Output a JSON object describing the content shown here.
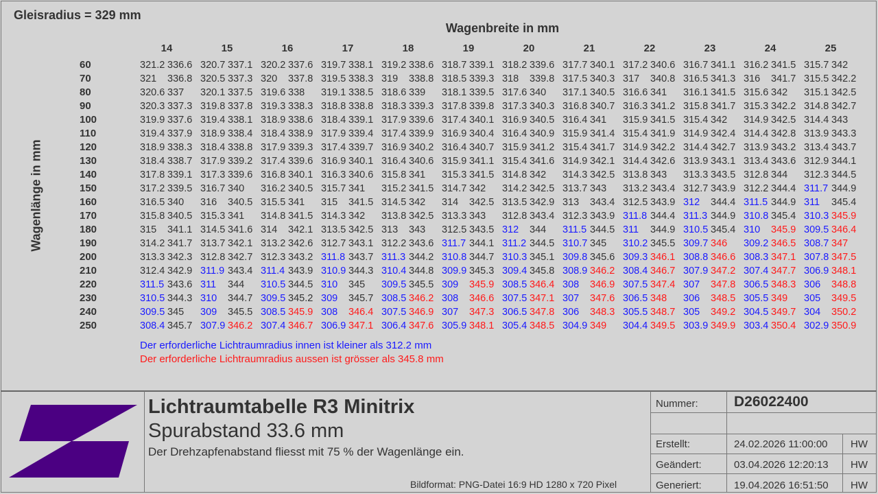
{
  "header": {
    "gleisradius": "Gleisradius = 329 mm",
    "wagenbreite_title": "Wagenbreite in mm",
    "wagenlaenge_title": "Wagenlänge in mm"
  },
  "table": {
    "widths": [
      "14",
      "15",
      "16",
      "17",
      "18",
      "19",
      "20",
      "21",
      "22",
      "23",
      "24",
      "25"
    ],
    "lengths": [
      "60",
      "70",
      "80",
      "90",
      "100",
      "110",
      "120",
      "130",
      "140",
      "150",
      "160",
      "170",
      "180",
      "190",
      "200",
      "210",
      "220",
      "230",
      "240",
      "250"
    ],
    "rows": [
      [
        [
          "321.2",
          "336.6"
        ],
        [
          "320.7",
          "337.1"
        ],
        [
          "320.2",
          "337.6"
        ],
        [
          "319.7",
          "338.1"
        ],
        [
          "319.2",
          "338.6"
        ],
        [
          "318.7",
          "339.1"
        ],
        [
          "318.2",
          "339.6"
        ],
        [
          "317.7",
          "340.1"
        ],
        [
          "317.2",
          "340.6"
        ],
        [
          "316.7",
          "341.1"
        ],
        [
          "316.2",
          "341.5"
        ],
        [
          "315.7",
          "342"
        ]
      ],
      [
        [
          "321",
          "336.8"
        ],
        [
          "320.5",
          "337.3"
        ],
        [
          "320",
          "337.8"
        ],
        [
          "319.5",
          "338.3"
        ],
        [
          "319",
          "338.8"
        ],
        [
          "318.5",
          "339.3"
        ],
        [
          "318",
          "339.8"
        ],
        [
          "317.5",
          "340.3"
        ],
        [
          "317",
          "340.8"
        ],
        [
          "316.5",
          "341.3"
        ],
        [
          "316",
          "341.7"
        ],
        [
          "315.5",
          "342.2"
        ]
      ],
      [
        [
          "320.6",
          "337"
        ],
        [
          "320.1",
          "337.5"
        ],
        [
          "319.6",
          "338"
        ],
        [
          "319.1",
          "338.5"
        ],
        [
          "318.6",
          "339"
        ],
        [
          "318.1",
          "339.5"
        ],
        [
          "317.6",
          "340"
        ],
        [
          "317.1",
          "340.5"
        ],
        [
          "316.6",
          "341"
        ],
        [
          "316.1",
          "341.5"
        ],
        [
          "315.6",
          "342"
        ],
        [
          "315.1",
          "342.5"
        ]
      ],
      [
        [
          "320.3",
          "337.3"
        ],
        [
          "319.8",
          "337.8"
        ],
        [
          "319.3",
          "338.3"
        ],
        [
          "318.8",
          "338.8"
        ],
        [
          "318.3",
          "339.3"
        ],
        [
          "317.8",
          "339.8"
        ],
        [
          "317.3",
          "340.3"
        ],
        [
          "316.8",
          "340.7"
        ],
        [
          "316.3",
          "341.2"
        ],
        [
          "315.8",
          "341.7"
        ],
        [
          "315.3",
          "342.2"
        ],
        [
          "314.8",
          "342.7"
        ]
      ],
      [
        [
          "319.9",
          "337.6"
        ],
        [
          "319.4",
          "338.1"
        ],
        [
          "318.9",
          "338.6"
        ],
        [
          "318.4",
          "339.1"
        ],
        [
          "317.9",
          "339.6"
        ],
        [
          "317.4",
          "340.1"
        ],
        [
          "316.9",
          "340.5"
        ],
        [
          "316.4",
          "341"
        ],
        [
          "315.9",
          "341.5"
        ],
        [
          "315.4",
          "342"
        ],
        [
          "314.9",
          "342.5"
        ],
        [
          "314.4",
          "343"
        ]
      ],
      [
        [
          "319.4",
          "337.9"
        ],
        [
          "318.9",
          "338.4"
        ],
        [
          "318.4",
          "338.9"
        ],
        [
          "317.9",
          "339.4"
        ],
        [
          "317.4",
          "339.9"
        ],
        [
          "316.9",
          "340.4"
        ],
        [
          "316.4",
          "340.9"
        ],
        [
          "315.9",
          "341.4"
        ],
        [
          "315.4",
          "341.9"
        ],
        [
          "314.9",
          "342.4"
        ],
        [
          "314.4",
          "342.8"
        ],
        [
          "313.9",
          "343.3"
        ]
      ],
      [
        [
          "318.9",
          "338.3"
        ],
        [
          "318.4",
          "338.8"
        ],
        [
          "317.9",
          "339.3"
        ],
        [
          "317.4",
          "339.7"
        ],
        [
          "316.9",
          "340.2"
        ],
        [
          "316.4",
          "340.7"
        ],
        [
          "315.9",
          "341.2"
        ],
        [
          "315.4",
          "341.7"
        ],
        [
          "314.9",
          "342.2"
        ],
        [
          "314.4",
          "342.7"
        ],
        [
          "313.9",
          "343.2"
        ],
        [
          "313.4",
          "343.7"
        ]
      ],
      [
        [
          "318.4",
          "338.7"
        ],
        [
          "317.9",
          "339.2"
        ],
        [
          "317.4",
          "339.6"
        ],
        [
          "316.9",
          "340.1"
        ],
        [
          "316.4",
          "340.6"
        ],
        [
          "315.9",
          "341.1"
        ],
        [
          "315.4",
          "341.6"
        ],
        [
          "314.9",
          "342.1"
        ],
        [
          "314.4",
          "342.6"
        ],
        [
          "313.9",
          "343.1"
        ],
        [
          "313.4",
          "343.6"
        ],
        [
          "312.9",
          "344.1"
        ]
      ],
      [
        [
          "317.8",
          "339.1"
        ],
        [
          "317.3",
          "339.6"
        ],
        [
          "316.8",
          "340.1"
        ],
        [
          "316.3",
          "340.6"
        ],
        [
          "315.8",
          "341"
        ],
        [
          "315.3",
          "341.5"
        ],
        [
          "314.8",
          "342"
        ],
        [
          "314.3",
          "342.5"
        ],
        [
          "313.8",
          "343"
        ],
        [
          "313.3",
          "343.5"
        ],
        [
          "312.8",
          "344"
        ],
        [
          "312.3",
          "344.5"
        ]
      ],
      [
        [
          "317.2",
          "339.5"
        ],
        [
          "316.7",
          "340"
        ],
        [
          "316.2",
          "340.5"
        ],
        [
          "315.7",
          "341"
        ],
        [
          "315.2",
          "341.5"
        ],
        [
          "314.7",
          "342"
        ],
        [
          "314.2",
          "342.5"
        ],
        [
          "313.7",
          "343"
        ],
        [
          "313.2",
          "343.4"
        ],
        [
          "312.7",
          "343.9"
        ],
        [
          "312.2",
          "344.4"
        ],
        [
          "311.7",
          "344.9"
        ]
      ],
      [
        [
          "316.5",
          "340"
        ],
        [
          "316",
          "340.5"
        ],
        [
          "315.5",
          "341"
        ],
        [
          "315",
          "341.5"
        ],
        [
          "314.5",
          "342"
        ],
        [
          "314",
          "342.5"
        ],
        [
          "313.5",
          "342.9"
        ],
        [
          "313",
          "343.4"
        ],
        [
          "312.5",
          "343.9"
        ],
        [
          "312",
          "344.4"
        ],
        [
          "311.5",
          "344.9"
        ],
        [
          "311",
          "345.4"
        ]
      ],
      [
        [
          "315.8",
          "340.5"
        ],
        [
          "315.3",
          "341"
        ],
        [
          "314.8",
          "341.5"
        ],
        [
          "314.3",
          "342"
        ],
        [
          "313.8",
          "342.5"
        ],
        [
          "313.3",
          "343"
        ],
        [
          "312.8",
          "343.4"
        ],
        [
          "312.3",
          "343.9"
        ],
        [
          "311.8",
          "344.4"
        ],
        [
          "311.3",
          "344.9"
        ],
        [
          "310.8",
          "345.4"
        ],
        [
          "310.3",
          "345.9"
        ]
      ],
      [
        [
          "315",
          "341.1"
        ],
        [
          "314.5",
          "341.6"
        ],
        [
          "314",
          "342.1"
        ],
        [
          "313.5",
          "342.5"
        ],
        [
          "313",
          "343"
        ],
        [
          "312.5",
          "343.5"
        ],
        [
          "312",
          "344"
        ],
        [
          "311.5",
          "344.5"
        ],
        [
          "311",
          "344.9"
        ],
        [
          "310.5",
          "345.4"
        ],
        [
          "310",
          "345.9"
        ],
        [
          "309.5",
          "346.4"
        ]
      ],
      [
        [
          "314.2",
          "341.7"
        ],
        [
          "313.7",
          "342.1"
        ],
        [
          "313.2",
          "342.6"
        ],
        [
          "312.7",
          "343.1"
        ],
        [
          "312.2",
          "343.6"
        ],
        [
          "311.7",
          "344.1"
        ],
        [
          "311.2",
          "344.5"
        ],
        [
          "310.7",
          "345"
        ],
        [
          "310.2",
          "345.5"
        ],
        [
          "309.7",
          "346"
        ],
        [
          "309.2",
          "346.5"
        ],
        [
          "308.7",
          "347"
        ]
      ],
      [
        [
          "313.3",
          "342.3"
        ],
        [
          "312.8",
          "342.7"
        ],
        [
          "312.3",
          "343.2"
        ],
        [
          "311.8",
          "343.7"
        ],
        [
          "311.3",
          "344.2"
        ],
        [
          "310.8",
          "344.7"
        ],
        [
          "310.3",
          "345.1"
        ],
        [
          "309.8",
          "345.6"
        ],
        [
          "309.3",
          "346.1"
        ],
        [
          "308.8",
          "346.6"
        ],
        [
          "308.3",
          "347.1"
        ],
        [
          "307.8",
          "347.5"
        ]
      ],
      [
        [
          "312.4",
          "342.9"
        ],
        [
          "311.9",
          "343.4"
        ],
        [
          "311.4",
          "343.9"
        ],
        [
          "310.9",
          "344.3"
        ],
        [
          "310.4",
          "344.8"
        ],
        [
          "309.9",
          "345.3"
        ],
        [
          "309.4",
          "345.8"
        ],
        [
          "308.9",
          "346.2"
        ],
        [
          "308.4",
          "346.7"
        ],
        [
          "307.9",
          "347.2"
        ],
        [
          "307.4",
          "347.7"
        ],
        [
          "306.9",
          "348.1"
        ]
      ],
      [
        [
          "311.5",
          "343.6"
        ],
        [
          "311",
          "344"
        ],
        [
          "310.5",
          "344.5"
        ],
        [
          "310",
          "345"
        ],
        [
          "309.5",
          "345.5"
        ],
        [
          "309",
          "345.9"
        ],
        [
          "308.5",
          "346.4"
        ],
        [
          "308",
          "346.9"
        ],
        [
          "307.5",
          "347.4"
        ],
        [
          "307",
          "347.8"
        ],
        [
          "306.5",
          "348.3"
        ],
        [
          "306",
          "348.8"
        ]
      ],
      [
        [
          "310.5",
          "344.3"
        ],
        [
          "310",
          "344.7"
        ],
        [
          "309.5",
          "345.2"
        ],
        [
          "309",
          "345.7"
        ],
        [
          "308.5",
          "346.2"
        ],
        [
          "308",
          "346.6"
        ],
        [
          "307.5",
          "347.1"
        ],
        [
          "307",
          "347.6"
        ],
        [
          "306.5",
          "348"
        ],
        [
          "306",
          "348.5"
        ],
        [
          "305.5",
          "349"
        ],
        [
          "305",
          "349.5"
        ]
      ],
      [
        [
          "309.5",
          "345"
        ],
        [
          "309",
          "345.5"
        ],
        [
          "308.5",
          "345.9"
        ],
        [
          "308",
          "346.4"
        ],
        [
          "307.5",
          "346.9"
        ],
        [
          "307",
          "347.3"
        ],
        [
          "306.5",
          "347.8"
        ],
        [
          "306",
          "348.3"
        ],
        [
          "305.5",
          "348.7"
        ],
        [
          "305",
          "349.2"
        ],
        [
          "304.5",
          "349.7"
        ],
        [
          "304",
          "350.2"
        ]
      ],
      [
        [
          "308.4",
          "345.7"
        ],
        [
          "307.9",
          "346.2"
        ],
        [
          "307.4",
          "346.7"
        ],
        [
          "306.9",
          "347.1"
        ],
        [
          "306.4",
          "347.6"
        ],
        [
          "305.9",
          "348.1"
        ],
        [
          "305.4",
          "348.5"
        ],
        [
          "304.9",
          "349"
        ],
        [
          "304.4",
          "349.5"
        ],
        [
          "303.9",
          "349.9"
        ],
        [
          "303.4",
          "350.4"
        ],
        [
          "302.9",
          "350.9"
        ]
      ]
    ],
    "colors": {
      "normal": "#333333",
      "inner_too_small": "#1a1aff",
      "outer_too_large": "#ff1a1a"
    }
  },
  "legend": {
    "blue_text": "Der erforderliche Lichtraumradius innen ist kleiner als 312.2 mm",
    "red_text": "Der erforderliche Lichtraumradius aussen  ist grösser als 345.8 mm"
  },
  "titleblock": {
    "logo_icon": "z-logo-icon",
    "logo_color": "#4b0082",
    "title": "Lichtraumtabelle R3 Minitrix",
    "subtitle": "Spurabstand 33.6 mm",
    "note": "Der Drehzapfenabstand fliesst mit 75 % der Wagenlänge ein.",
    "format": "Bildformat: PNG-Datei 16:9 HD 1280 x 720 Pixel",
    "nummer_label": "Nummer:",
    "nummer": "D26022400",
    "erstellt_label": "Erstellt:",
    "erstellt": "24.02.2026 11:00:00",
    "erstellt_by": "HW",
    "geaendert_label": "Geändert:",
    "geaendert": "03.04.2026 12:20:13",
    "geaendert_by": "HW",
    "generiert_label": "Generiert:",
    "generiert": "19.04.2026 16:51:50",
    "generiert_by": "HW"
  }
}
